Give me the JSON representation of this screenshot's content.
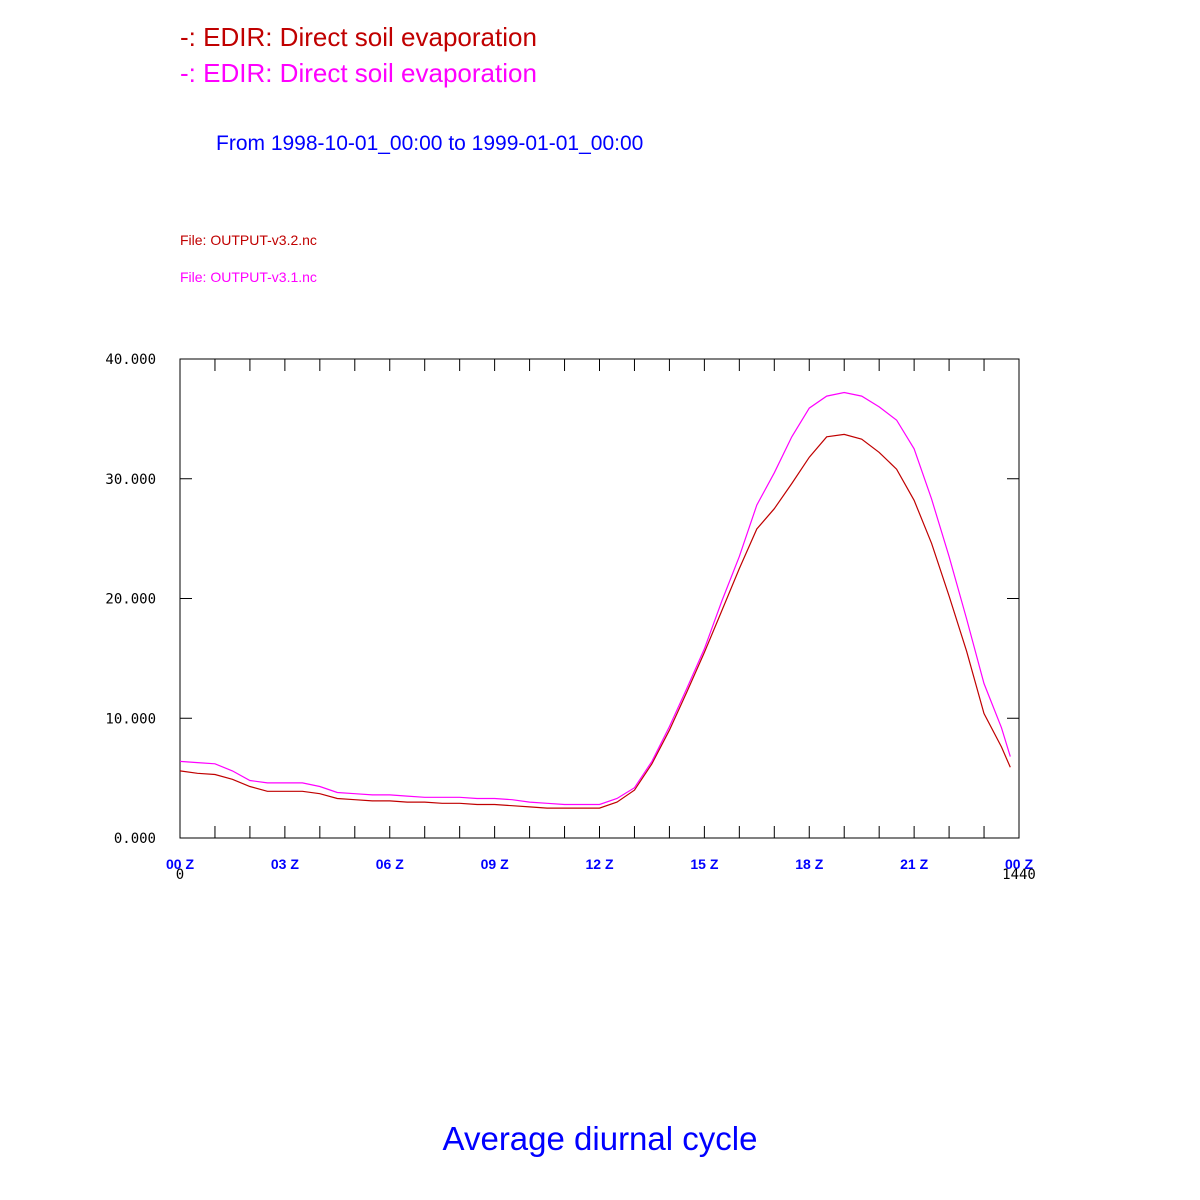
{
  "header": {
    "title_lines": [
      {
        "text": "-: EDIR: Direct soil evaporation",
        "color": "#c00000"
      },
      {
        "text": "-: EDIR: Direct soil evaporation",
        "color": "#ff00ff"
      }
    ],
    "date_range": "From 1998-10-01_00:00 to 1999-01-01_00:00",
    "date_range_color": "#0000ff"
  },
  "files": [
    {
      "text": "File: OUTPUT-v3.2.nc",
      "color": "#c00000"
    },
    {
      "text": "File: OUTPUT-v3.1.nc",
      "color": "#ff00ff"
    }
  ],
  "footer": {
    "title": "Average diurnal cycle",
    "color": "#0000ff"
  },
  "chart_data": {
    "type": "line",
    "xlim": [
      0,
      1440
    ],
    "ylim": [
      0,
      40
    ],
    "y_ticks": [
      {
        "value": 0,
        "label": "0.000"
      },
      {
        "value": 10,
        "label": "10.000"
      },
      {
        "value": 20,
        "label": "20.000"
      },
      {
        "value": 30,
        "label": "30.000"
      },
      {
        "value": 40,
        "label": "40.000"
      }
    ],
    "x_ticks": [
      {
        "value": 0,
        "label": "00 Z"
      },
      {
        "value": 180,
        "label": "03 Z"
      },
      {
        "value": 360,
        "label": "06 Z"
      },
      {
        "value": 540,
        "label": "09 Z"
      },
      {
        "value": 720,
        "label": "12 Z"
      },
      {
        "value": 900,
        "label": "15 Z"
      },
      {
        "value": 1080,
        "label": "18 Z"
      },
      {
        "value": 1260,
        "label": "21 Z"
      },
      {
        "value": 1440,
        "label": "00 Z"
      }
    ],
    "x_tick_color": "#0000ff",
    "x_end_labels": [
      "0",
      "1440"
    ],
    "grid": false,
    "x": [
      0,
      30,
      60,
      90,
      120,
      150,
      180,
      210,
      240,
      270,
      300,
      330,
      360,
      390,
      420,
      450,
      480,
      510,
      540,
      570,
      600,
      630,
      660,
      690,
      720,
      750,
      780,
      810,
      840,
      870,
      900,
      930,
      960,
      990,
      1020,
      1050,
      1080,
      1110,
      1140,
      1170,
      1200,
      1230,
      1260,
      1290,
      1320,
      1350,
      1380,
      1410,
      1425
    ],
    "series": [
      {
        "color": "#c00000",
        "values": [
          5.6,
          5.4,
          5.3,
          4.9,
          4.3,
          3.9,
          3.9,
          3.9,
          3.7,
          3.3,
          3.2,
          3.1,
          3.1,
          3.0,
          3.0,
          2.9,
          2.9,
          2.8,
          2.8,
          2.7,
          2.6,
          2.5,
          2.5,
          2.5,
          2.5,
          3.0,
          4.0,
          6.2,
          9.0,
          12.2,
          15.5,
          19.0,
          22.5,
          25.8,
          27.5,
          29.6,
          31.8,
          33.5,
          33.7,
          33.3,
          32.2,
          30.8,
          28.2,
          24.6,
          20.2,
          15.6,
          10.4,
          7.6,
          5.9
        ]
      },
      {
        "color": "#ff00ff",
        "values": [
          6.4,
          6.3,
          6.2,
          5.6,
          4.8,
          4.6,
          4.6,
          4.6,
          4.3,
          3.8,
          3.7,
          3.6,
          3.6,
          3.5,
          3.4,
          3.4,
          3.4,
          3.3,
          3.3,
          3.2,
          3.0,
          2.9,
          2.8,
          2.8,
          2.8,
          3.3,
          4.2,
          6.4,
          9.3,
          12.5,
          15.8,
          19.8,
          23.5,
          27.8,
          30.5,
          33.5,
          35.9,
          36.9,
          37.2,
          36.9,
          36.0,
          34.9,
          32.5,
          28.3,
          23.5,
          18.3,
          12.9,
          9.2,
          6.8
        ]
      }
    ]
  }
}
